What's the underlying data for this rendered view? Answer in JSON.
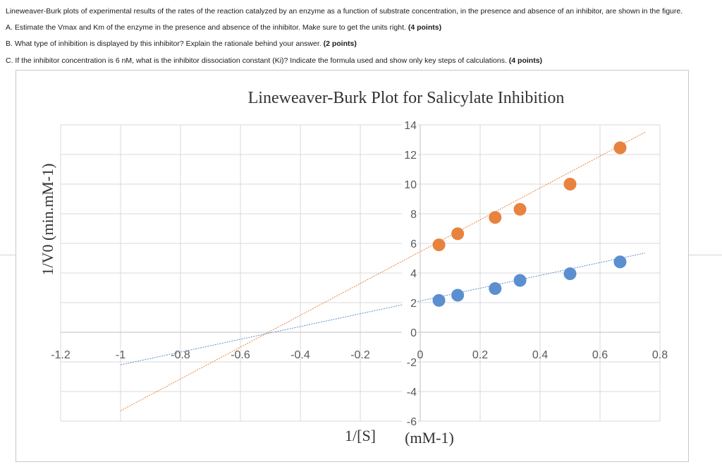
{
  "question": {
    "intro": "Lineweaver-Burk plots of experimental results of the rates of the reaction catalyzed by an enzyme as a function of substrate concentration, in the presence and absence of an inhibitor, are shown in the figure.",
    "a_text": "A. Estimate the Vmax and Km of the enzyme in the presence and absence of the inhibitor. Make sure to get the units right. ",
    "a_points": "(4 points)",
    "b_text": "B. What type of inhibition is displayed by this inhibitor? Explain the rationale behind your answer. ",
    "b_points": "(2 points)",
    "c_text": "C. If the inhibitor concentration is 6 nM, what is the inhibitor dissociation constant (Ki)? Indicate the formula used and show only key steps of calculations. ",
    "c_points": "(4 points)"
  },
  "chart_data": {
    "type": "scatter",
    "title": "Lineweaver-Burk Plot for Salicylate Inhibition",
    "ylabel": "1/V0   (min.mM-1)",
    "xlabel_main": "1/[S]",
    "xlabel_unit": "(mM-1)",
    "xlim": [
      -1.2,
      0.8
    ],
    "ylim": [
      -6,
      14
    ],
    "x_ticks": [
      "-1.2",
      "-1",
      "-0.8",
      "-0.6",
      "-0.4",
      "-0.2",
      "0",
      "0.2",
      "0.4",
      "0.6",
      "0.8"
    ],
    "x_tick_values": [
      -1.2,
      -1,
      -0.8,
      -0.6,
      -0.4,
      -0.2,
      0,
      0.2,
      0.4,
      0.6,
      0.8
    ],
    "y_ticks": [
      "14",
      "12",
      "10",
      "8",
      "6",
      "4",
      "2",
      "0",
      "-2",
      "-4",
      "-6"
    ],
    "y_tick_values": [
      14,
      12,
      10,
      8,
      6,
      4,
      2,
      0,
      -2,
      -4,
      -6
    ],
    "grid": true,
    "series": [
      {
        "color": "#e8823f",
        "points": [
          {
            "x": 0.0625,
            "y": 5.9
          },
          {
            "x": 0.125,
            "y": 6.65
          },
          {
            "x": 0.25,
            "y": 7.75
          },
          {
            "x": 0.333,
            "y": 8.3
          },
          {
            "x": 0.5,
            "y": 10.0
          },
          {
            "x": 0.667,
            "y": 12.45
          }
        ],
        "trend": {
          "x1": -1.0,
          "y1": -5.3,
          "x2": 0.75,
          "y2": 13.5
        }
      },
      {
        "color": "#5b8fd0",
        "points": [
          {
            "x": 0.0625,
            "y": 2.15
          },
          {
            "x": 0.125,
            "y": 2.5
          },
          {
            "x": 0.25,
            "y": 2.95
          },
          {
            "x": 0.333,
            "y": 3.5
          },
          {
            "x": 0.5,
            "y": 3.95
          },
          {
            "x": 0.667,
            "y": 4.75
          }
        ],
        "trend": {
          "x1": -1.0,
          "y1": -2.2,
          "x2": 0.75,
          "y2": 5.35
        }
      }
    ]
  }
}
